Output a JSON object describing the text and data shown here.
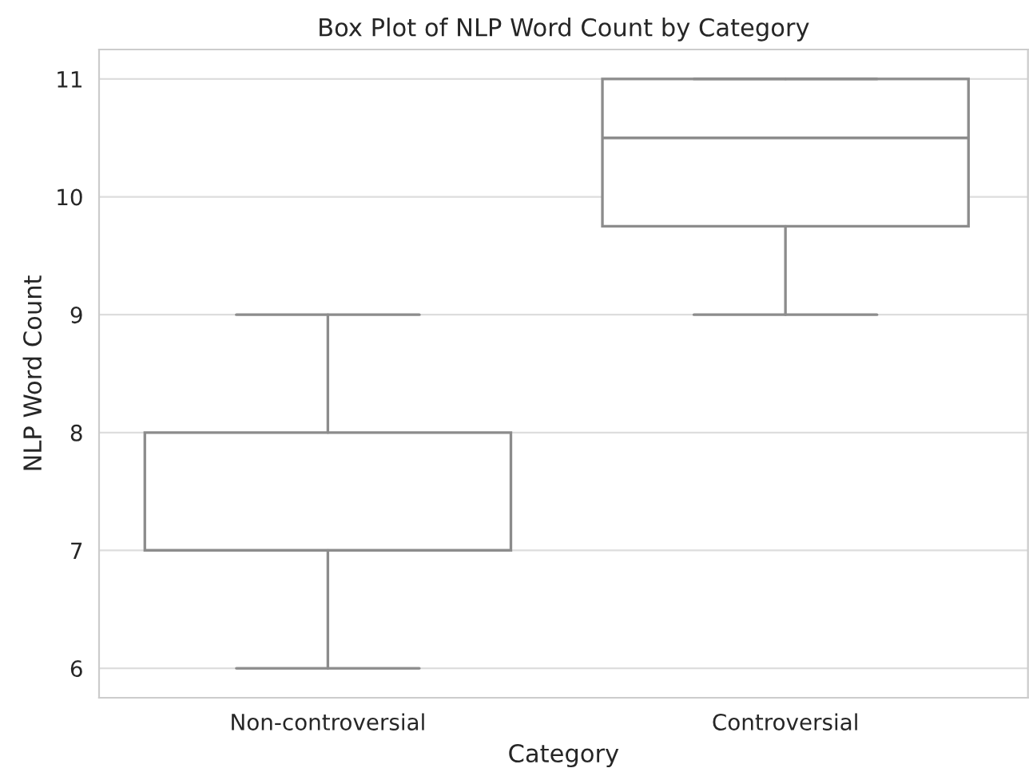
{
  "chart_data": {
    "type": "box",
    "title": "Box Plot of NLP Word Count by Category",
    "xlabel": "Category",
    "ylabel": "NLP Word Count",
    "categories": [
      "Non-controversial",
      "Controversial"
    ],
    "boxes": [
      {
        "low": 6,
        "q1": 7,
        "median": 7,
        "q3": 8,
        "high": 9
      },
      {
        "low": 9,
        "q1": 9.75,
        "median": 10.5,
        "q3": 11,
        "high": 11
      }
    ],
    "color": "#8c8c8c",
    "ylim": [
      5.75,
      11.25
    ],
    "yticks": [
      6,
      7,
      8,
      9,
      10,
      11
    ],
    "grid": "y"
  }
}
